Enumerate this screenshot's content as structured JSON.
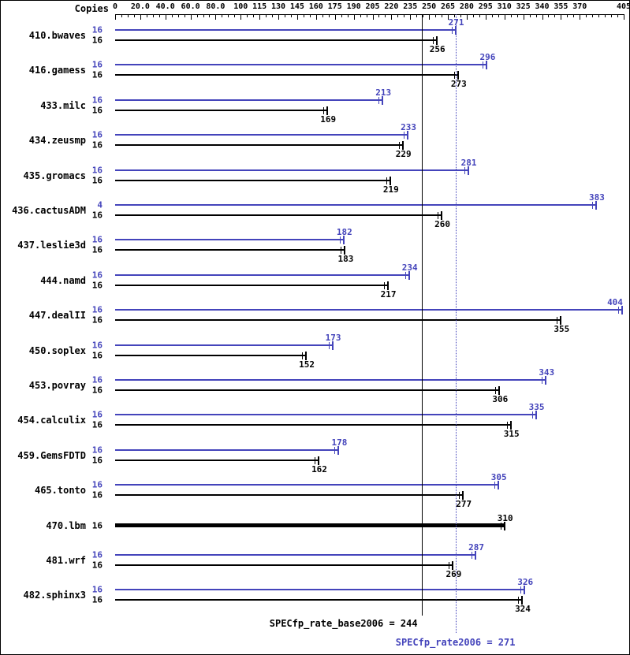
{
  "header": {
    "copies_label": "Copies"
  },
  "axis": {
    "max": 405,
    "minor_tick_step": 5,
    "ticks": [
      {
        "value": 0,
        "label": "0"
      },
      {
        "value": 20,
        "label": "20.0"
      },
      {
        "value": 40,
        "label": "40.0"
      },
      {
        "value": 60,
        "label": "60.0"
      },
      {
        "value": 80,
        "label": "80.0"
      },
      {
        "value": 100,
        "label": "100"
      },
      {
        "value": 115,
        "label": "115"
      },
      {
        "value": 130,
        "label": "130"
      },
      {
        "value": 145,
        "label": "145"
      },
      {
        "value": 160,
        "label": "160"
      },
      {
        "value": 175,
        "label": "175"
      },
      {
        "value": 190,
        "label": "190"
      },
      {
        "value": 205,
        "label": "205"
      },
      {
        "value": 220,
        "label": "220"
      },
      {
        "value": 235,
        "label": "235"
      },
      {
        "value": 250,
        "label": "250"
      },
      {
        "value": 265,
        "label": "265"
      },
      {
        "value": 280,
        "label": "280"
      },
      {
        "value": 295,
        "label": "295"
      },
      {
        "value": 310,
        "label": "310"
      },
      {
        "value": 325,
        "label": "325"
      },
      {
        "value": 340,
        "label": "340"
      },
      {
        "value": 355,
        "label": "355"
      },
      {
        "value": 370,
        "label": "370"
      },
      {
        "value": 405,
        "label": "405"
      }
    ]
  },
  "colors": {
    "peak": "#4444bb",
    "base": "#000000"
  },
  "chart_data": {
    "type": "bar",
    "orientation": "horizontal",
    "xlim": [
      0,
      405
    ],
    "legend_position": "bottom",
    "benchmarks": [
      {
        "name": "410.bwaves",
        "peak": {
          "copies": "16",
          "value": 271
        },
        "base": {
          "copies": "16",
          "value": 256
        }
      },
      {
        "name": "416.gamess",
        "peak": {
          "copies": "16",
          "value": 296
        },
        "base": {
          "copies": "16",
          "value": 273
        }
      },
      {
        "name": "433.milc",
        "peak": {
          "copies": "16",
          "value": 213
        },
        "base": {
          "copies": "16",
          "value": 169
        }
      },
      {
        "name": "434.zeusmp",
        "peak": {
          "copies": "16",
          "value": 233
        },
        "base": {
          "copies": "16",
          "value": 229
        }
      },
      {
        "name": "435.gromacs",
        "peak": {
          "copies": "16",
          "value": 281
        },
        "base": {
          "copies": "16",
          "value": 219
        }
      },
      {
        "name": "436.cactusADM",
        "peak": {
          "copies": "4",
          "value": 383
        },
        "base": {
          "copies": "16",
          "value": 260
        }
      },
      {
        "name": "437.leslie3d",
        "peak": {
          "copies": "16",
          "value": 182
        },
        "base": {
          "copies": "16",
          "value": 183
        }
      },
      {
        "name": "444.namd",
        "peak": {
          "copies": "16",
          "value": 234
        },
        "base": {
          "copies": "16",
          "value": 217
        }
      },
      {
        "name": "447.dealII",
        "peak": {
          "copies": "16",
          "value": 404
        },
        "base": {
          "copies": "16",
          "value": 355
        }
      },
      {
        "name": "450.soplex",
        "peak": {
          "copies": "16",
          "value": 173
        },
        "base": {
          "copies": "16",
          "value": 152
        }
      },
      {
        "name": "453.povray",
        "peak": {
          "copies": "16",
          "value": 343
        },
        "base": {
          "copies": "16",
          "value": 306
        }
      },
      {
        "name": "454.calculix",
        "peak": {
          "copies": "16",
          "value": 335
        },
        "base": {
          "copies": "16",
          "value": 315
        }
      },
      {
        "name": "459.GemsFDTD",
        "peak": {
          "copies": "16",
          "value": 178
        },
        "base": {
          "copies": "16",
          "value": 162
        }
      },
      {
        "name": "465.tonto",
        "peak": {
          "copies": "16",
          "value": 305
        },
        "base": {
          "copies": "16",
          "value": 277
        }
      },
      {
        "name": "470.lbm",
        "single": {
          "copies": "16",
          "value": 310
        }
      },
      {
        "name": "481.wrf",
        "peak": {
          "copies": "16",
          "value": 287
        },
        "base": {
          "copies": "16",
          "value": 269
        }
      },
      {
        "name": "482.sphinx3",
        "peak": {
          "copies": "16",
          "value": 326
        },
        "base": {
          "copies": "16",
          "value": 324
        }
      }
    ],
    "reference_lines": [
      {
        "label": "SPECfp_rate_base2006 = 244",
        "value": 244,
        "style": "solid",
        "color": "#000000"
      },
      {
        "label": "SPECfp_rate2006 = 271",
        "value": 271,
        "style": "dotted",
        "color": "#4444bb"
      }
    ]
  }
}
